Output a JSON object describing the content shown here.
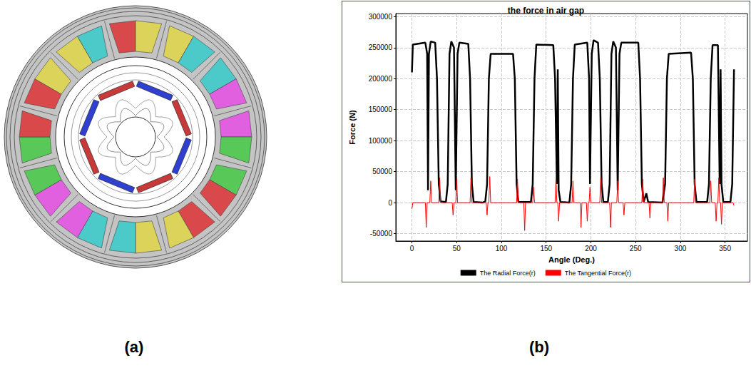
{
  "chart_data": {
    "type": "line",
    "title": "the force in air gap",
    "x_label": "Angle (Deg.)",
    "y_label": "Force (N)",
    "series": [
      {
        "name": "The Radial Force(r)",
        "color": "#000000",
        "x": [
          0,
          1,
          15,
          17,
          18,
          19,
          21,
          26,
          28,
          30,
          32,
          38,
          40,
          42,
          44,
          47,
          49,
          51,
          53,
          63,
          65,
          67,
          69,
          79,
          82,
          84,
          86,
          88,
          113,
          115,
          117,
          119,
          133,
          135,
          137,
          139,
          158,
          160,
          162,
          163,
          164,
          166,
          176,
          178,
          180,
          182,
          196,
          198,
          199,
          201,
          203,
          208,
          210,
          212,
          214,
          219,
          221,
          223,
          225,
          228,
          230,
          232,
          234,
          253,
          255,
          257,
          259,
          262,
          264,
          280,
          283,
          285,
          287,
          312,
          314,
          316,
          318,
          330,
          332,
          334,
          336,
          342,
          344,
          345,
          346,
          348,
          356,
          358,
          360
        ],
        "values": [
          210000,
          255000,
          258000,
          240000,
          20000,
          240000,
          260000,
          258000,
          200000,
          30000,
          2000,
          1000,
          30000,
          240000,
          260000,
          250000,
          20000,
          240000,
          258000,
          256000,
          200000,
          30000,
          1000,
          0,
          2000,
          30000,
          200000,
          240000,
          240000,
          200000,
          30000,
          1000,
          1000,
          30000,
          200000,
          255000,
          254000,
          200000,
          30000,
          215000,
          20000,
          1000,
          0,
          30000,
          200000,
          255000,
          258000,
          200000,
          30000,
          240000,
          262000,
          258000,
          200000,
          30000,
          1000,
          1000,
          30000,
          240000,
          260000,
          250000,
          20000,
          240000,
          258000,
          258000,
          200000,
          30000,
          1000,
          15000,
          1000,
          0,
          30000,
          200000,
          240000,
          242000,
          200000,
          30000,
          1000,
          1000,
          30000,
          200000,
          254000,
          254000,
          30000,
          215000,
          30000,
          1000,
          1000,
          30000,
          215000
        ]
      },
      {
        "name": "The Tangential Force(r)",
        "color": "#ff0000",
        "x": [
          0,
          1,
          15,
          16,
          17,
          20,
          21,
          22,
          30,
          31,
          32,
          45,
          46,
          47,
          49,
          50,
          51,
          65,
          66,
          67,
          83,
          84,
          85,
          86,
          87,
          88,
          117,
          118,
          119,
          125,
          126,
          127,
          135,
          136,
          137,
          160,
          161,
          162,
          163,
          164,
          165,
          179,
          180,
          181,
          188,
          189,
          190,
          195,
          196,
          197,
          198,
          199,
          200,
          210,
          211,
          212,
          221,
          222,
          223,
          229,
          230,
          231,
          236,
          237,
          238,
          257,
          258,
          259,
          265,
          266,
          267,
          280,
          281,
          282,
          285,
          286,
          287,
          315,
          316,
          317,
          333,
          334,
          335,
          339,
          340,
          341,
          342,
          343,
          344,
          345,
          346,
          347,
          359,
          360
        ],
        "values": [
          -10000,
          0,
          0,
          -40000,
          0,
          0,
          35000,
          0,
          0,
          40000,
          0,
          0,
          -20000,
          0,
          0,
          38000,
          0,
          0,
          40000,
          0,
          0,
          -20000,
          0,
          0,
          42000,
          0,
          0,
          38000,
          0,
          0,
          -45000,
          0,
          0,
          25000,
          0,
          0,
          40000,
          0,
          0,
          -30000,
          0,
          0,
          35000,
          0,
          0,
          -40000,
          0,
          0,
          -30000,
          0,
          0,
          25000,
          0,
          0,
          40000,
          0,
          0,
          -40000,
          0,
          0,
          35000,
          0,
          0,
          -20000,
          0,
          0,
          38000,
          0,
          0,
          -25000,
          0,
          0,
          40000,
          0,
          0,
          -30000,
          0,
          0,
          38000,
          0,
          0,
          35000,
          0,
          0,
          -30000,
          0,
          0,
          40000,
          0,
          0,
          -35000,
          0,
          0,
          -5000
        ]
      }
    ],
    "xlim": [
      -18,
      375
    ],
    "xticks": [
      0,
      50,
      100,
      150,
      200,
      250,
      300,
      350
    ],
    "ylim": [
      -62000,
      305000
    ],
    "yticks": [
      -50000,
      0,
      50000,
      100000,
      150000,
      200000,
      250000,
      300000
    ],
    "grid": true,
    "legend": "bottom"
  },
  "panel_labels": [
    "(a)",
    "(b)"
  ]
}
